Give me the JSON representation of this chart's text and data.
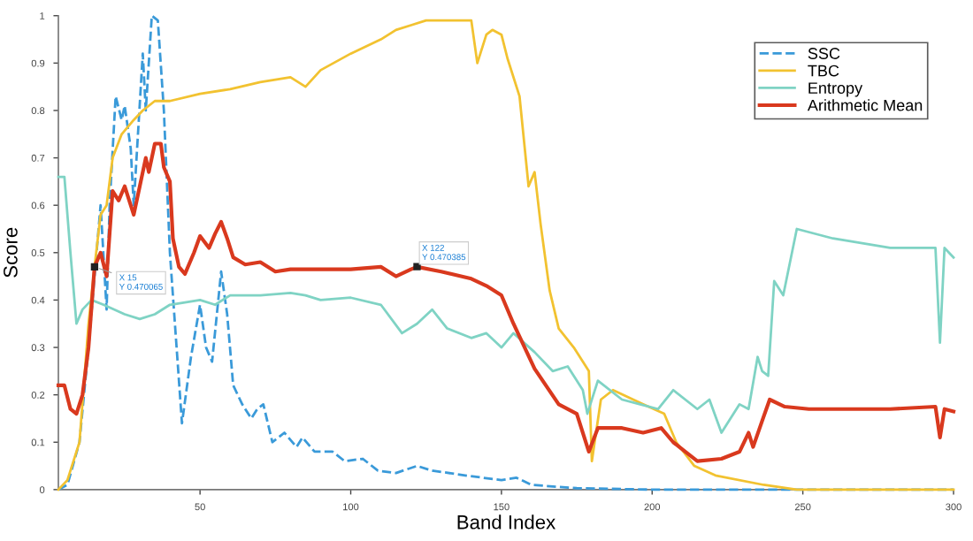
{
  "chart_data": {
    "type": "line",
    "xlabel": "Band Index",
    "ylabel": "Score",
    "xlim": [
      3,
      300
    ],
    "xticks": [
      50,
      100,
      150,
      200,
      250,
      300
    ],
    "ylim": [
      0,
      1
    ],
    "yticks": [
      0,
      0.1,
      0.2,
      0.3,
      0.4,
      0.5,
      0.6,
      0.7,
      0.8,
      0.9,
      1
    ],
    "grid": false,
    "legend": "top right",
    "annotations": [
      {
        "text": "X 15\nY 0.470065",
        "x": 15,
        "y": 0.470065
      },
      {
        "text": "X 122\nY 0.470385",
        "x": 122,
        "y": 0.470385
      }
    ],
    "series": [
      {
        "name": "SSC",
        "color": "#3a9ad9",
        "line_style": "dashed",
        "x": [
          3,
          6,
          10,
          13,
          15,
          17,
          19,
          20,
          22,
          24,
          25,
          27,
          28,
          31,
          32,
          34,
          36,
          38,
          40,
          44,
          47,
          50,
          52,
          54,
          57,
          59,
          61,
          64,
          67,
          69,
          71,
          74,
          78,
          82,
          84,
          88,
          94,
          98,
          104,
          109,
          115,
          122,
          127,
          138,
          150,
          155,
          160,
          175,
          200,
          300
        ],
        "values": [
          0,
          0.01,
          0.1,
          0.3,
          0.45,
          0.6,
          0.38,
          0.6,
          0.83,
          0.78,
          0.81,
          0.72,
          0.6,
          0.92,
          0.8,
          1.0,
          0.99,
          0.8,
          0.5,
          0.14,
          0.28,
          0.39,
          0.3,
          0.27,
          0.46,
          0.37,
          0.22,
          0.18,
          0.15,
          0.17,
          0.18,
          0.1,
          0.12,
          0.09,
          0.11,
          0.08,
          0.08,
          0.06,
          0.065,
          0.04,
          0.035,
          0.05,
          0.04,
          0.03,
          0.02,
          0.025,
          0.01,
          0.003,
          0,
          0
        ]
      },
      {
        "name": "TBC",
        "color": "#f2c230",
        "line_style": "solid",
        "x": [
          3,
          6,
          10,
          13,
          15,
          17,
          19,
          21,
          24,
          28,
          31,
          35,
          40,
          50,
          60,
          70,
          80,
          85,
          90,
          100,
          110,
          115,
          120,
          125,
          130,
          140,
          142,
          145,
          147,
          150,
          152,
          156,
          159,
          161,
          163,
          166,
          169,
          174,
          179,
          180,
          183,
          187,
          197,
          204,
          208,
          214,
          221,
          237,
          248,
          300
        ],
        "values": [
          0,
          0.02,
          0.1,
          0.35,
          0.47,
          0.58,
          0.6,
          0.7,
          0.75,
          0.78,
          0.8,
          0.82,
          0.82,
          0.835,
          0.845,
          0.86,
          0.87,
          0.85,
          0.885,
          0.92,
          0.95,
          0.97,
          0.98,
          0.99,
          0.99,
          0.99,
          0.9,
          0.96,
          0.97,
          0.96,
          0.91,
          0.83,
          0.64,
          0.67,
          0.56,
          0.42,
          0.34,
          0.3,
          0.25,
          0.06,
          0.19,
          0.21,
          0.18,
          0.16,
          0.1,
          0.05,
          0.03,
          0.01,
          0,
          0
        ]
      },
      {
        "name": "Entropy",
        "color": "#7fd3c4",
        "line_style": "solid",
        "x": [
          3,
          5,
          7,
          9,
          11,
          14,
          18,
          25,
          30,
          35,
          40,
          50,
          55,
          60,
          70,
          80,
          85,
          90,
          100,
          110,
          117,
          122,
          127,
          132,
          140,
          145,
          150,
          154,
          161,
          167,
          172,
          177,
          178.5,
          182,
          190,
          196,
          202,
          207,
          215,
          219,
          223,
          229,
          232,
          235,
          236.5,
          238.5,
          240.5,
          243.5,
          248,
          260,
          279,
          294,
          295.5,
          297,
          300
        ],
        "values": [
          0.66,
          0.66,
          0.5,
          0.35,
          0.38,
          0.4,
          0.39,
          0.37,
          0.36,
          0.37,
          0.39,
          0.4,
          0.39,
          0.41,
          0.41,
          0.415,
          0.41,
          0.4,
          0.405,
          0.39,
          0.33,
          0.35,
          0.38,
          0.34,
          0.32,
          0.33,
          0.3,
          0.33,
          0.29,
          0.25,
          0.26,
          0.21,
          0.16,
          0.23,
          0.19,
          0.18,
          0.17,
          0.21,
          0.17,
          0.19,
          0.12,
          0.18,
          0.17,
          0.28,
          0.25,
          0.24,
          0.44,
          0.41,
          0.55,
          0.53,
          0.51,
          0.51,
          0.31,
          0.51,
          0.49
        ]
      },
      {
        "name": "Arithmetic Mean",
        "color": "#d9391e",
        "line_style": "solid",
        "x": [
          3,
          5,
          7,
          9,
          11,
          13,
          15,
          17,
          19,
          21,
          23,
          25,
          27,
          28,
          30,
          32,
          33,
          35,
          37,
          38,
          40,
          41,
          43,
          45,
          48,
          50,
          53,
          55,
          57,
          59,
          61,
          65,
          70,
          75,
          80,
          90,
          100,
          110,
          115,
          120,
          122,
          130,
          140,
          145,
          150,
          154,
          161,
          169,
          175,
          179,
          182,
          190,
          197,
          203,
          207,
          215,
          223,
          229,
          232,
          233.5,
          236.5,
          239,
          244,
          252,
          279,
          294,
          295.5,
          297,
          300
        ],
        "values": [
          0.22,
          0.22,
          0.17,
          0.16,
          0.2,
          0.3,
          0.47,
          0.5,
          0.45,
          0.63,
          0.61,
          0.64,
          0.6,
          0.58,
          0.64,
          0.7,
          0.67,
          0.73,
          0.73,
          0.68,
          0.65,
          0.53,
          0.47,
          0.455,
          0.5,
          0.535,
          0.51,
          0.54,
          0.565,
          0.53,
          0.49,
          0.475,
          0.48,
          0.46,
          0.465,
          0.465,
          0.465,
          0.47,
          0.45,
          0.465,
          0.47,
          0.46,
          0.445,
          0.43,
          0.41,
          0.35,
          0.255,
          0.18,
          0.16,
          0.08,
          0.13,
          0.13,
          0.12,
          0.13,
          0.1,
          0.06,
          0.065,
          0.08,
          0.12,
          0.09,
          0.145,
          0.19,
          0.175,
          0.17,
          0.17,
          0.175,
          0.11,
          0.17,
          0.165
        ]
      }
    ]
  }
}
